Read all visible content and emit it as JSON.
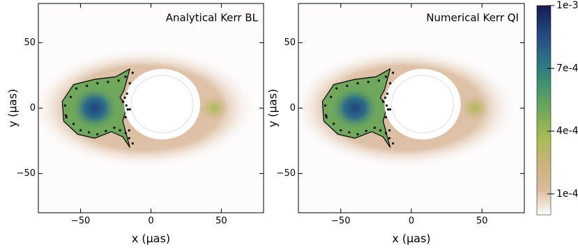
{
  "chart_data": [
    {
      "type": "heatmap",
      "title": "Analytical Kerr BL",
      "xlabel": "x (μas)",
      "ylabel": "y (μas)",
      "xlim": [
        -80,
        80
      ],
      "ylim": [
        -80,
        80
      ],
      "xticks": [
        {
          "value": -50,
          "label": "−50"
        },
        0,
        50
      ],
      "yticks": [
        {
          "value": -50,
          "label": "−50"
        },
        0,
        50
      ]
    },
    {
      "type": "heatmap",
      "title": "Numerical Kerr QI",
      "xlabel": "x (μas)",
      "ylabel": "y (μas)",
      "xlim": [
        -80,
        80
      ],
      "ylim": [
        -80,
        80
      ],
      "xticks": [
        {
          "value": -50,
          "label": "−50"
        },
        0,
        50
      ],
      "yticks": [
        {
          "value": -50,
          "label": "−50"
        },
        0,
        50
      ]
    },
    {
      "type": "colorbar",
      "ylim": [
        0,
        0.001
      ],
      "yticks": [
        {
          "value": 0.0001,
          "label": "1e-4"
        },
        {
          "value": 0.0004,
          "label": "4e-4"
        },
        {
          "value": 0.0007,
          "label": "7e-4"
        },
        {
          "value": 0.001,
          "label": "1e-3"
        }
      ],
      "colors": [
        "#fdfbfb",
        "#d9b99a",
        "#c9b37a",
        "#a8bb52",
        "#6fa85a",
        "#3f9270",
        "#2c6e8a",
        "#23447e",
        "#141d4f"
      ]
    }
  ]
}
